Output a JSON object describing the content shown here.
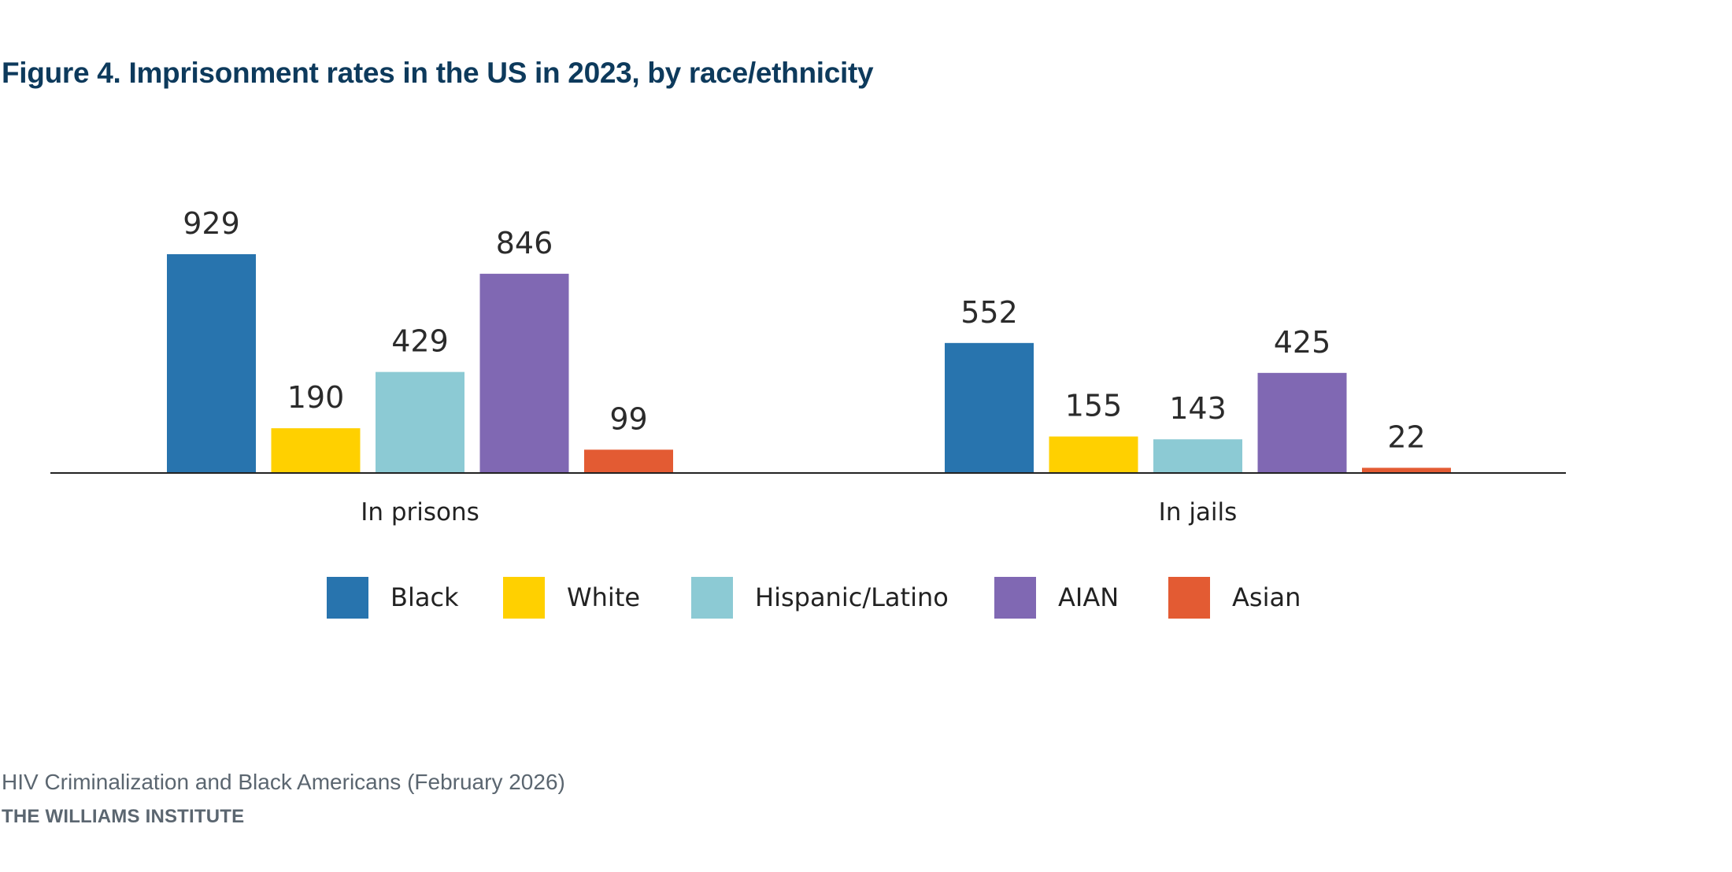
{
  "title": "Figure 4. Imprisonment rates in the US in 2023, by race/ethnicity",
  "footer": {
    "source": "HIV Criminalization and Black Americans (February 2026)",
    "organization": "THE WILLIAMS INSTITUTE"
  },
  "chart_data": {
    "type": "bar",
    "title": "Figure 4. Imprisonment rates in the US in 2023, by race/ethnicity",
    "xlabel": "",
    "ylabel": "",
    "categories": [
      "In prisons",
      "In jails"
    ],
    "series": [
      {
        "name": "Black",
        "color": "#2874ae",
        "values": [
          929,
          552
        ]
      },
      {
        "name": "White",
        "color": "#ffd000",
        "values": [
          190,
          155
        ]
      },
      {
        "name": "Hispanic/Latino",
        "color": "#8ccad4",
        "values": [
          429,
          143
        ]
      },
      {
        "name": "AIAN",
        "color": "#8068b3",
        "values": [
          846,
          425
        ]
      },
      {
        "name": "Asian",
        "color": "#e35b33",
        "values": [
          99,
          22
        ]
      }
    ],
    "ylim": [
      0,
      929
    ],
    "grid": false,
    "y_axis_visible": false,
    "data_labels": true,
    "legend_position": "bottom"
  }
}
